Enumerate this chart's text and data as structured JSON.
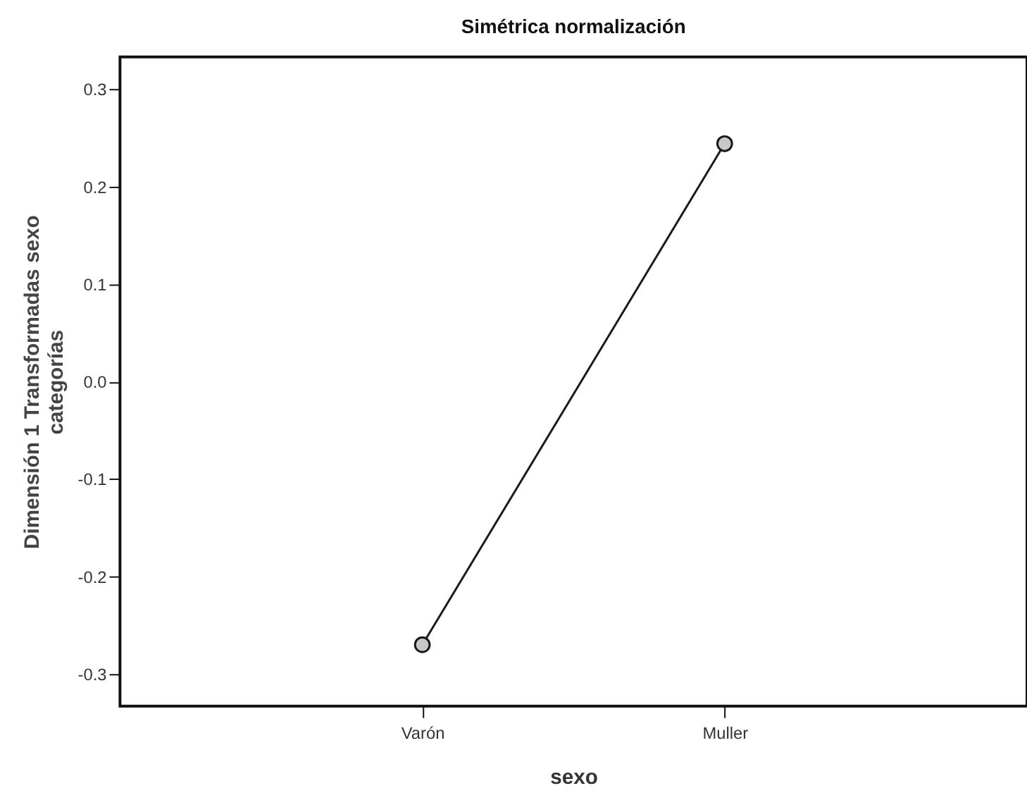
{
  "chart_data": {
    "type": "line",
    "title": "Simétrica normalización",
    "xlabel": "sexo",
    "ylabel": "Dimensión 1 Transformadas sexo\ncategorías",
    "categories": [
      "Varón",
      "Muller"
    ],
    "series": [
      {
        "color": "#1a1a1a",
        "values": [
          -0.27,
          0.244
        ]
      }
    ],
    "ylim": [
      -0.333,
      0.333
    ],
    "yticks": [
      {
        "value": -0.3,
        "label": "-0.3"
      },
      {
        "value": -0.2,
        "label": "-0.2"
      },
      {
        "value": -0.1,
        "label": "-0.1"
      },
      {
        "value": 0,
        "label": "0.0"
      },
      {
        "value": 0.1,
        "label": "0.1"
      },
      {
        "value": 0.2,
        "label": "0.2"
      },
      {
        "value": 0.3,
        "label": "0.3"
      }
    ],
    "marker": "circle",
    "line_style": "solid",
    "grid": false
  }
}
